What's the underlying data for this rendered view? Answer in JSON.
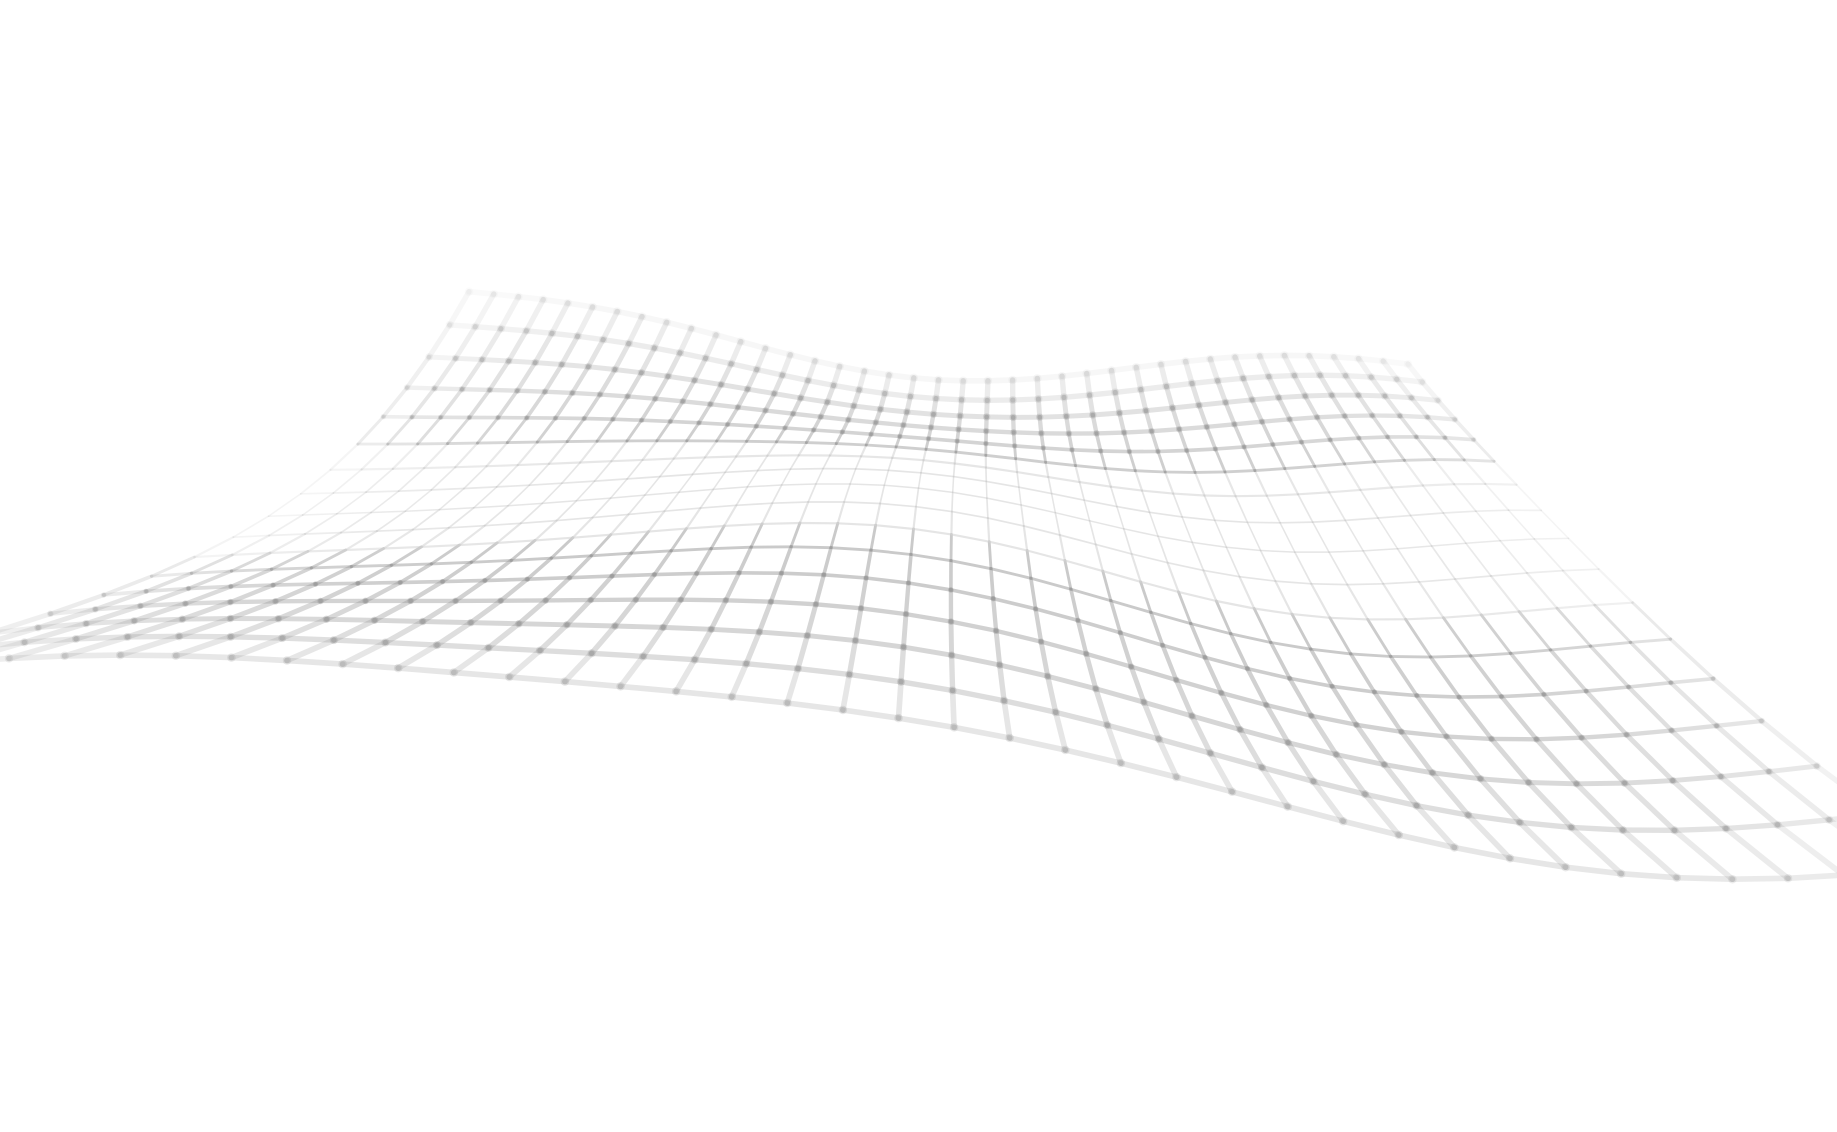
{
  "scene": {
    "subject": "wireframe-wave-mesh",
    "background_color": "#ffffff",
    "line_color": "#9a9a9a",
    "highlight_line_color": "#cfcfcf",
    "node_color": "#9a9a9a",
    "style": "3d-perspective-grid",
    "depth_fade": true
  }
}
